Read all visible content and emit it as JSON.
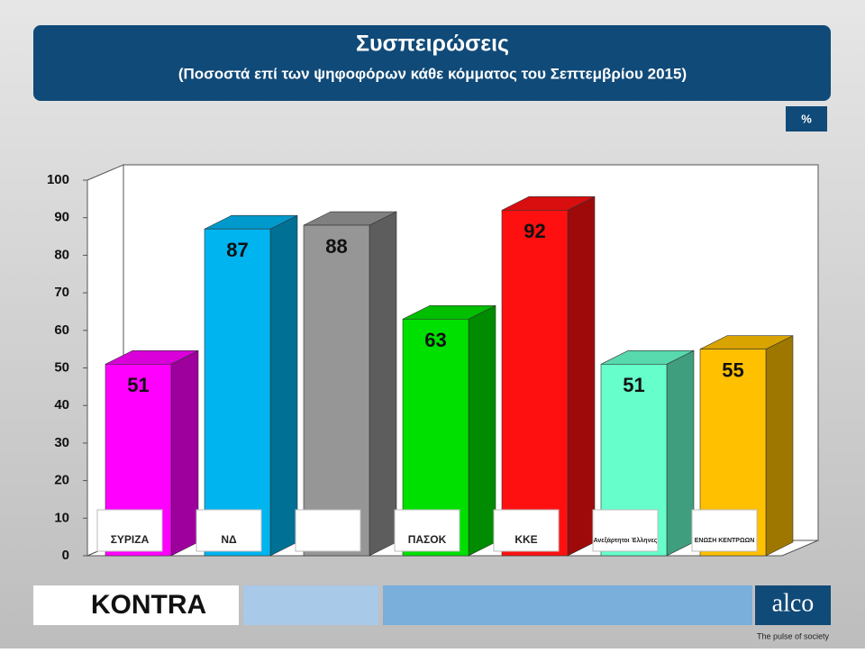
{
  "chart_data": {
    "type": "bar3d",
    "title": "Συσπειρώσεις",
    "subtitle": "(Ποσοστά επί των ψηφοφόρων κάθε κόμματος του Σεπτεμβρίου 2015)",
    "unit": "%",
    "categories": [
      "ΣΥΡΙΖΑ",
      "ΝΔ",
      null,
      "ΠΑΣΟΚ",
      "ΚΚΕ",
      "Ανεξάρτητοι Έλληνες",
      "ΕΝΩΣΗ ΚΕΝΤΡΩΩΝ"
    ],
    "values": [
      51,
      87,
      88,
      63,
      92,
      51,
      55
    ],
    "colors": [
      "#ff00ff",
      "#00b4f0",
      "#969696",
      "#00e000",
      "#ff1010",
      "#66ffcc",
      "#ffc000"
    ],
    "ylim": [
      0,
      100
    ],
    "yticks": [
      0,
      10,
      20,
      30,
      40,
      50,
      60,
      70,
      80,
      90,
      100
    ]
  },
  "footer": {
    "brand": "KONTRA",
    "logo": "alco",
    "tagline": "The pulse of society"
  }
}
